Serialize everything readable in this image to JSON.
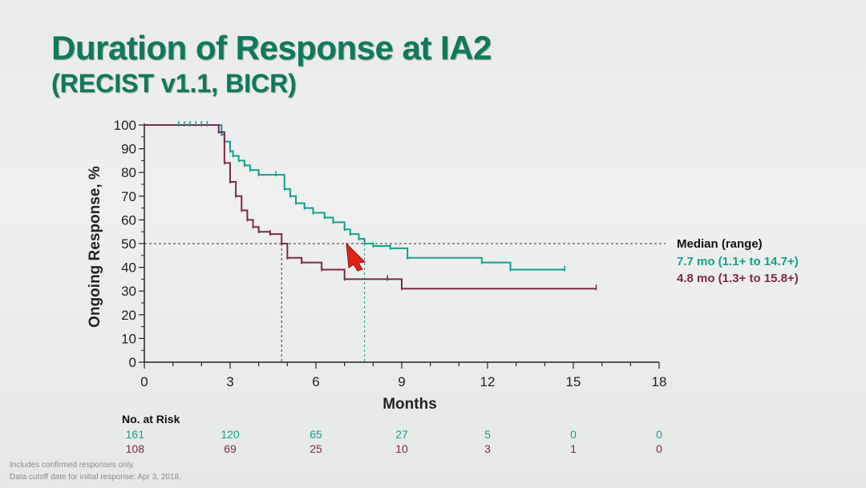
{
  "slide": {
    "title": "Duration of Response at IA2",
    "subtitle": "(RECIST v1.1, BICR)",
    "footnotes": [
      "Includes confirmed responses only.",
      "Data cutoff date for initial response: Apr 3, 2018."
    ]
  },
  "colors": {
    "title": "#0e7a5b",
    "teal": "#13a08a",
    "maroon": "#7b2a4a",
    "axis": "#222222"
  },
  "chart_data": {
    "type": "line",
    "title": "Duration of Response at IA2",
    "xlabel": "Months",
    "ylabel": "Ongoing Response, %",
    "xlim": [
      0,
      18
    ],
    "ylim": [
      0,
      100
    ],
    "xticks": [
      0,
      3,
      6,
      9,
      12,
      15,
      18
    ],
    "yticks": [
      0,
      10,
      20,
      30,
      40,
      50,
      60,
      70,
      80,
      90,
      100
    ],
    "median_line": 50,
    "series": [
      {
        "name": "7.7 mo (1.1+ to 14.7+)",
        "color": "#13a08a",
        "median": 7.7,
        "x": [
          0,
          2.7,
          2.8,
          3.0,
          3.1,
          3.3,
          3.5,
          3.7,
          4.0,
          4.6,
          4.9,
          5.1,
          5.3,
          5.6,
          5.9,
          6.3,
          6.6,
          7.0,
          7.2,
          7.5,
          7.7,
          8.0,
          8.6,
          9.2,
          11.8,
          12.8,
          14.7
        ],
        "y": [
          100,
          96,
          93,
          89,
          87,
          85,
          83,
          81,
          79,
          79,
          73,
          70,
          67,
          65,
          63,
          61,
          59,
          56,
          54,
          52,
          50,
          49,
          48,
          44,
          42,
          39,
          39
        ]
      },
      {
        "name": "4.8 mo (1.3+ to 15.8+)",
        "color": "#7b2a4a",
        "median": 4.8,
        "x": [
          0,
          2.6,
          2.8,
          3.0,
          3.2,
          3.4,
          3.6,
          3.8,
          4.0,
          4.4,
          4.8,
          5.0,
          5.5,
          6.2,
          7.0,
          8.5,
          9.0,
          15.8
        ],
        "y": [
          100,
          97,
          84,
          76,
          70,
          64,
          60,
          57,
          55,
          54,
          50,
          44,
          42,
          39,
          35,
          35,
          31,
          31
        ]
      }
    ],
    "legend_title": "Median (range)",
    "at_risk": {
      "label": "No. at Risk",
      "times": [
        0,
        3,
        6,
        9,
        12,
        15,
        18
      ],
      "rows": [
        {
          "color": "#13a08a",
          "values": [
            "161",
            "120",
            "65",
            "27",
            "5",
            "0",
            "0"
          ]
        },
        {
          "color": "#7b2a4a",
          "values": [
            "108",
            "69",
            "25",
            "10",
            "3",
            "1",
            "0"
          ]
        }
      ]
    }
  }
}
